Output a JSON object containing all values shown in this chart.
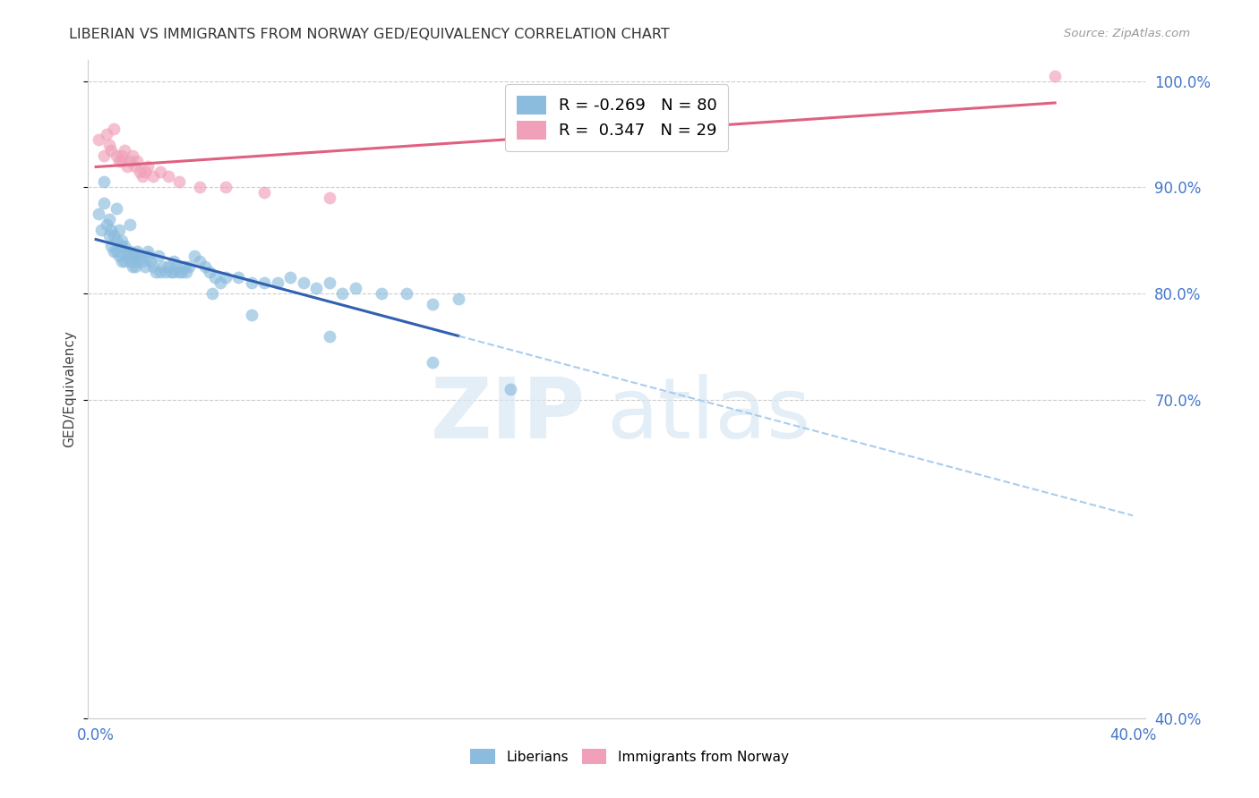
{
  "title": "LIBERIAN VS IMMIGRANTS FROM NORWAY GED/EQUIVALENCY CORRELATION CHART",
  "source": "Source: ZipAtlas.com",
  "ylabel": "GED/Equivalency",
  "liberian_color": "#8BBCDE",
  "norway_color": "#F0A0B8",
  "liberian_line_color": "#3060B0",
  "norway_line_color": "#E06080",
  "dashed_line_color": "#AACCEE",
  "background_color": "#ffffff",
  "legend_label1": "R = -0.269   N = 80",
  "legend_label2": "R =  0.347   N = 29",
  "bottom_label1": "Liberians",
  "bottom_label2": "Immigrants from Norway",
  "xlim": [
    0.0,
    0.4
  ],
  "ylim": [
    40.0,
    102.0
  ],
  "yticks": [
    40.0,
    70.0,
    80.0,
    90.0,
    100.0
  ],
  "ytick_labels": [
    "40.0%",
    "70.0%",
    "80.0%",
    "90.0%",
    "100.0%"
  ],
  "xticks": [
    0.0,
    0.05,
    0.1,
    0.15,
    0.2,
    0.25,
    0.3,
    0.35,
    0.4
  ],
  "xtick_labels": [
    "0.0%",
    "",
    "",
    "",
    "",
    "",
    "",
    "",
    "40.0%"
  ],
  "liberian_x": [
    0.001,
    0.002,
    0.003,
    0.004,
    0.005,
    0.005,
    0.006,
    0.006,
    0.007,
    0.007,
    0.008,
    0.008,
    0.009,
    0.009,
    0.01,
    0.01,
    0.01,
    0.011,
    0.011,
    0.012,
    0.012,
    0.013,
    0.013,
    0.014,
    0.014,
    0.015,
    0.015,
    0.016,
    0.016,
    0.017,
    0.018,
    0.019,
    0.02,
    0.021,
    0.022,
    0.023,
    0.024,
    0.025,
    0.026,
    0.027,
    0.028,
    0.029,
    0.03,
    0.031,
    0.032,
    0.033,
    0.034,
    0.035,
    0.036,
    0.038,
    0.04,
    0.042,
    0.044,
    0.046,
    0.048,
    0.05,
    0.055,
    0.06,
    0.065,
    0.07,
    0.075,
    0.08,
    0.085,
    0.09,
    0.095,
    0.1,
    0.11,
    0.12,
    0.13,
    0.14,
    0.003,
    0.008,
    0.013,
    0.02,
    0.03,
    0.045,
    0.06,
    0.09,
    0.13,
    0.16
  ],
  "liberian_y": [
    87.5,
    86.0,
    88.5,
    86.5,
    87.0,
    85.5,
    86.0,
    84.5,
    85.5,
    84.0,
    85.0,
    84.0,
    86.0,
    83.5,
    85.0,
    84.5,
    83.0,
    84.5,
    83.0,
    84.0,
    83.5,
    83.0,
    84.0,
    83.5,
    82.5,
    83.5,
    82.5,
    84.0,
    83.0,
    83.5,
    83.0,
    82.5,
    83.5,
    83.0,
    82.5,
    82.0,
    83.5,
    82.0,
    82.5,
    82.0,
    82.5,
    82.0,
    83.0,
    82.5,
    82.0,
    82.0,
    82.5,
    82.0,
    82.5,
    83.5,
    83.0,
    82.5,
    82.0,
    81.5,
    81.0,
    81.5,
    81.5,
    81.0,
    81.0,
    81.0,
    81.5,
    81.0,
    80.5,
    81.0,
    80.0,
    80.5,
    80.0,
    80.0,
    79.0,
    79.5,
    90.5,
    88.0,
    86.5,
    84.0,
    82.0,
    80.0,
    78.0,
    76.0,
    73.5,
    71.0
  ],
  "norway_x": [
    0.001,
    0.003,
    0.004,
    0.005,
    0.006,
    0.007,
    0.008,
    0.009,
    0.01,
    0.01,
    0.011,
    0.012,
    0.013,
    0.014,
    0.015,
    0.016,
    0.017,
    0.018,
    0.019,
    0.02,
    0.022,
    0.025,
    0.028,
    0.032,
    0.04,
    0.05,
    0.065,
    0.09,
    0.37
  ],
  "norway_y": [
    94.5,
    93.0,
    95.0,
    94.0,
    93.5,
    95.5,
    93.0,
    92.5,
    93.0,
    92.5,
    93.5,
    92.0,
    92.5,
    93.0,
    92.0,
    92.5,
    91.5,
    91.0,
    91.5,
    92.0,
    91.0,
    91.5,
    91.0,
    90.5,
    90.0,
    90.0,
    89.5,
    89.0,
    100.5
  ]
}
